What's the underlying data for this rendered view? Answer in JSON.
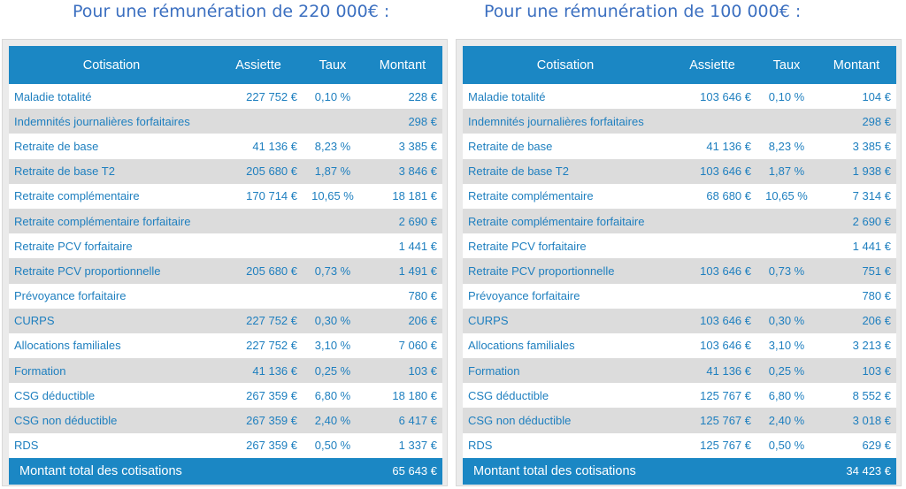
{
  "headings": {
    "left": "Pour une rémunération de 220 000€ :",
    "right": "Pour une rémunération de 100 000€ :"
  },
  "columns": [
    "Cotisation",
    "Assiette",
    "Taux",
    "Montant"
  ],
  "tables": [
    {
      "rows": [
        [
          "Maladie totalité",
          "227 752 €",
          "0,10 %",
          "228 €"
        ],
        [
          "Indemnités journalières forfaitaires",
          "",
          "",
          "298 €"
        ],
        [
          "Retraite de base",
          "41 136 €",
          "8,23 %",
          "3 385 €"
        ],
        [
          "Retraite de base T2",
          "205 680 €",
          "1,87 %",
          "3 846 €"
        ],
        [
          "Retraite complémentaire",
          "170 714 €",
          "10,65 %",
          "18 181 €"
        ],
        [
          "Retraite complémentaire forfaitaire",
          "",
          "",
          "2 690 €"
        ],
        [
          "Retraite PCV forfaitaire",
          "",
          "",
          "1 441 €"
        ],
        [
          "Retraite PCV proportionnelle",
          "205 680 €",
          "0,73 %",
          "1 491 €"
        ],
        [
          "Prévoyance forfaitaire",
          "",
          "",
          "780 €"
        ],
        [
          "CURPS",
          "227 752 €",
          "0,30 %",
          "206 €"
        ],
        [
          "Allocations familiales",
          "227 752 €",
          "3,10 %",
          "7 060 €"
        ],
        [
          "Formation",
          "41 136 €",
          "0,25 %",
          "103 €"
        ],
        [
          "CSG déductible",
          "267 359 €",
          "6,80 %",
          "18 180 €"
        ],
        [
          "CSG non déductible",
          "267 359 €",
          "2,40 %",
          "6 417 €"
        ],
        [
          "RDS",
          "267 359 €",
          "0,50 %",
          "1 337 €"
        ]
      ],
      "total_label": "Montant total des cotisations",
      "total_value": "65 643 €"
    },
    {
      "rows": [
        [
          "Maladie totalité",
          "103 646 €",
          "0,10 %",
          "104 €"
        ],
        [
          "Indemnités journalières forfaitaires",
          "",
          "",
          "298 €"
        ],
        [
          "Retraite de base",
          "41 136 €",
          "8,23 %",
          "3 385 €"
        ],
        [
          "Retraite de base T2",
          "103 646 €",
          "1,87 %",
          "1 938 €"
        ],
        [
          "Retraite complémentaire",
          "68 680 €",
          "10,65 %",
          "7 314 €"
        ],
        [
          "Retraite complémentaire forfaitaire",
          "",
          "",
          "2 690 €"
        ],
        [
          "Retraite PCV forfaitaire",
          "",
          "",
          "1 441 €"
        ],
        [
          "Retraite PCV proportionnelle",
          "103 646 €",
          "0,73 %",
          "751 €"
        ],
        [
          "Prévoyance forfaitaire",
          "",
          "",
          "780 €"
        ],
        [
          "CURPS",
          "103 646 €",
          "0,30 %",
          "206 €"
        ],
        [
          "Allocations familiales",
          "103 646 €",
          "3,10 %",
          "3 213 €"
        ],
        [
          "Formation",
          "41 136 €",
          "0,25 %",
          "103 €"
        ],
        [
          "CSG déductible",
          "125 767 €",
          "6,80 %",
          "8 552 €"
        ],
        [
          "CSG non déductible",
          "125 767 €",
          "2,40 %",
          "3 018 €"
        ],
        [
          "RDS",
          "125 767 €",
          "0,50 %",
          "629 €"
        ]
      ],
      "total_label": "Montant total des cotisations",
      "total_value": "34 423 €"
    }
  ],
  "colors": {
    "header_bg": "#1b87c4",
    "row_text": "#1e7fbf",
    "heading_text": "#3b6fc0",
    "alt_row": "#dcdcdc"
  }
}
